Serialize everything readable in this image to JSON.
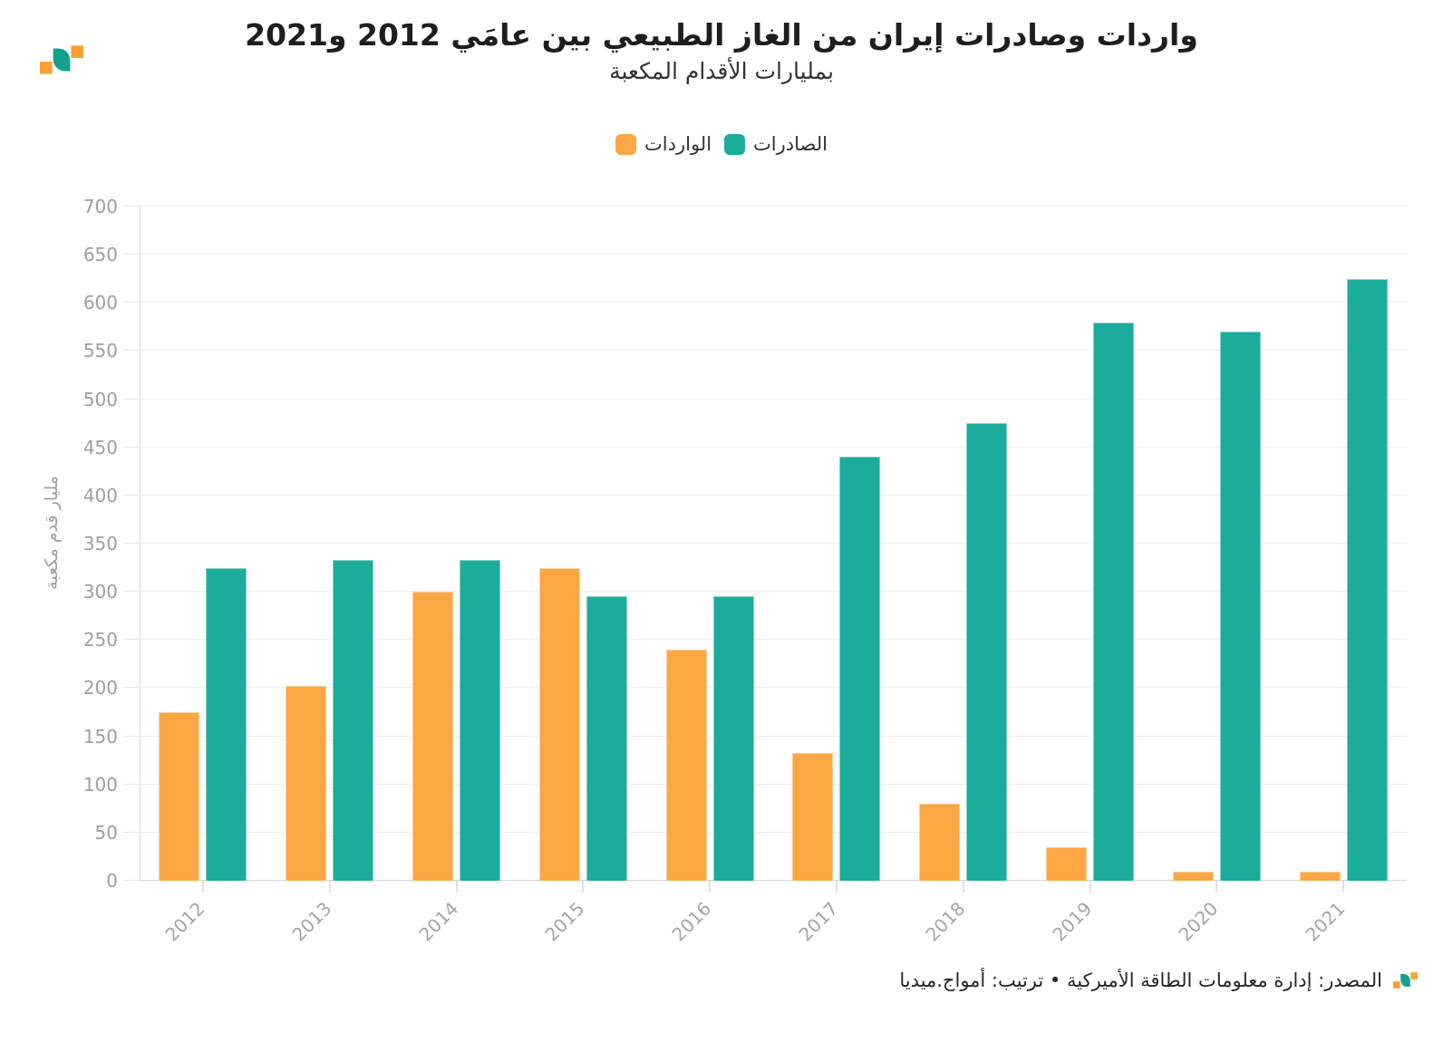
{
  "header": {
    "title": "واردات وصادرات إيران من الغاز الطبيعي بين عامَي 2012 و2021",
    "subtitle": "بمليارات الأقدام المكعبة"
  },
  "legend": {
    "items": [
      {
        "label": "الواردات",
        "color": "#FBA844"
      },
      {
        "label": "الصادرات",
        "color": "#1BAC9C"
      }
    ]
  },
  "chart_data": {
    "type": "bar",
    "title": "واردات وصادرات إيران من الغاز الطبيعي بين عامَي 2012 و2021",
    "subtitle": "بمليارات الأقدام المكعبة",
    "categories": [
      "2012",
      "2013",
      "2014",
      "2015",
      "2016",
      "2017",
      "2018",
      "2019",
      "2020",
      "2021"
    ],
    "series": [
      {
        "key": "imports",
        "name": "الواردات",
        "color": "#FBA844",
        "values": [
          175,
          202,
          300,
          325,
          240,
          133,
          80,
          35,
          9,
          9
        ]
      },
      {
        "key": "exports",
        "name": "الصادرات",
        "color": "#1BAC9C",
        "values": [
          325,
          333,
          333,
          295,
          295,
          440,
          475,
          580,
          570,
          625
        ]
      }
    ],
    "xlabel": "",
    "ylabel": "مليار قدم مكعبة",
    "ylim": [
      0,
      700
    ],
    "yticks": [
      0,
      50,
      100,
      150,
      200,
      250,
      300,
      350,
      400,
      450,
      500,
      550,
      600,
      650,
      700
    ],
    "grid": true,
    "legend_position": "top"
  },
  "footer": {
    "text": "المصدر: إدارة معلومات الطاقة الأميركية • ترتيب: أمواج.ميديا"
  },
  "icons": {
    "brand_logo": "amwaj-wave-logo"
  },
  "colors": {
    "imports": "#FBA844",
    "exports": "#1BAC9C",
    "axis_text": "#9e9e9e",
    "gridline": "#ededed"
  }
}
